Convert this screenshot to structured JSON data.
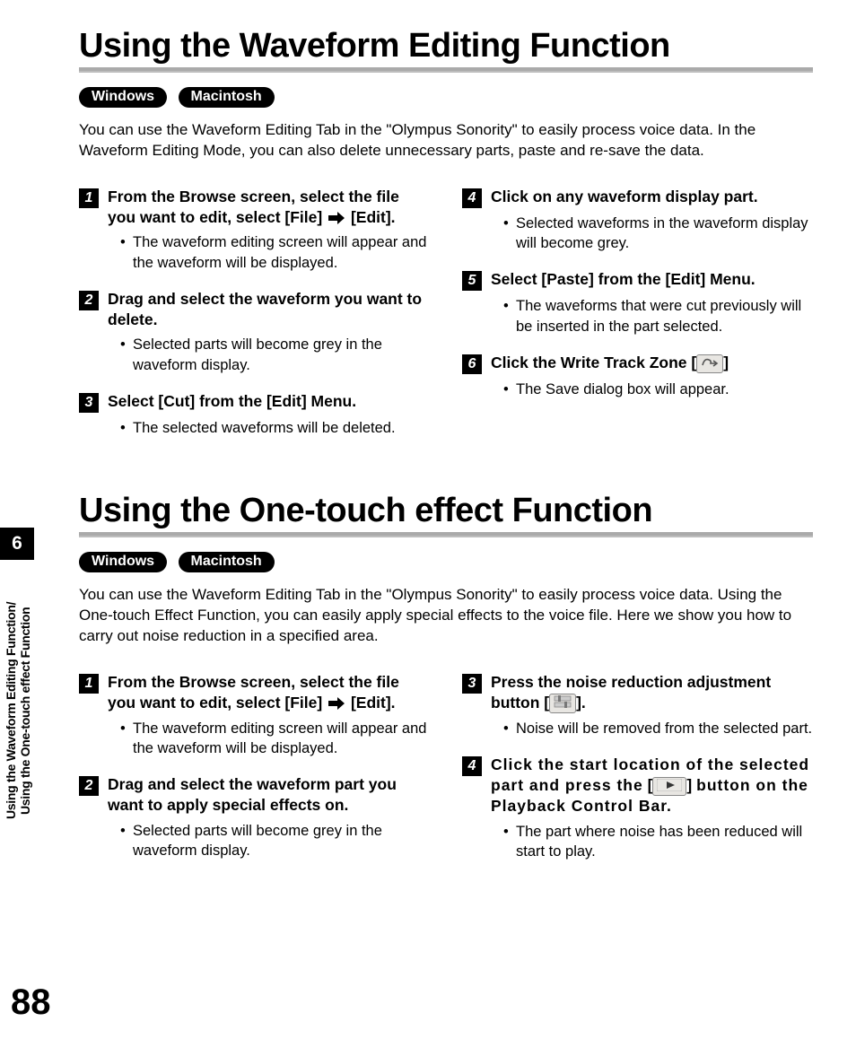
{
  "page": {
    "number": "88",
    "chapter": "6"
  },
  "sidebar": {
    "line1": "Using the Waveform Editing Function/",
    "line2": "Using the One-touch effect Function"
  },
  "platforms": [
    "Windows",
    "Macintosh"
  ],
  "section1": {
    "title": "Using the Waveform Editing Function",
    "intro": "You can use the Waveform Editing Tab in the \"Olympus Sonority\" to easily process voice data. In the Waveform Editing Mode, you can also delete unnecessary parts, paste and re-save the data.",
    "steps": [
      {
        "n": "1",
        "title_html": "From the Browse screen, select the file you want to edit, select [<b>File</b>] <svg class='arrow-icon' width='18' height='14' viewBox='0 0 18 14'><path d='M0 4 H10 V0 L18 7 L10 14 V10 H0 Z' fill='#000'/></svg> [<b>Edit</b>].",
        "bullets": [
          "The waveform editing screen will appear and the waveform will be displayed."
        ]
      },
      {
        "n": "2",
        "title_html": "Drag and select the waveform you want to delete.",
        "bullets": [
          "Selected parts will become grey in the waveform display."
        ]
      },
      {
        "n": "3",
        "title_html": "Select [<b>Cut</b>] from the [<b>Edit</b>] Menu.",
        "bullets": [
          "The selected waveforms will be deleted."
        ]
      },
      {
        "n": "4",
        "title_html": "Click on any waveform display part.",
        "bullets": [
          "Selected waveforms in the waveform display will become grey."
        ]
      },
      {
        "n": "5",
        "title_html": "Select [<b>Paste</b>] from the [<b>Edit</b>] Menu.",
        "bullets": [
          "The waveforms that were cut previously will be inserted in the part selected."
        ]
      },
      {
        "n": "6",
        "title_html": "Click the Write Track Zone [<span class='icon-box'><svg width='20' height='14' viewBox='0 0 20 14'><path d='M2 10 Q4 2 9 4 Q12 5 11 8 L17 8' stroke='#555' stroke-width='1.6' fill='none'/><path d='M14 5 L18 8 L14 11' stroke='#555' stroke-width='1.6' fill='none'/></svg></span>]",
        "bullets": [
          "The Save dialog box will appear."
        ]
      }
    ]
  },
  "section2": {
    "title": "Using the One-touch effect Function",
    "intro": "You can use the Waveform Editing Tab in the \"Olympus Sonority\" to easily process voice data. Using the One-touch Effect Function, you can easily apply special effects to the voice file. Here we show you how to carry out noise reduction in a specified area.",
    "steps": [
      {
        "n": "1",
        "title_html": "From the Browse screen, select the file you want to edit, select [<b>File</b>] <svg class='arrow-icon' width='18' height='14' viewBox='0 0 18 14'><path d='M0 4 H10 V0 L18 7 L10 14 V10 H0 Z' fill='#000'/></svg> [<b>Edit</b>].",
        "bullets": [
          "The waveform editing screen will appear and the waveform will be displayed."
        ]
      },
      {
        "n": "2",
        "title_html": "Drag and select the waveform part you want to apply special effects on.",
        "bullets": [
          "Selected parts will become grey in the waveform display."
        ]
      },
      {
        "n": "3",
        "title_html": "Press the noise reduction adjustment button [<span class='icon-box'><svg width='20' height='14' viewBox='0 0 20 14'><rect x='1' y='1' width='18' height='5' fill='#ccc' stroke='#888' stroke-width='0.8'/><rect x='1' y='8' width='18' height='5' fill='#ccc' stroke='#888' stroke-width='0.8'/><rect x='5' y='0' width='3' height='7' fill='#777'/><rect x='12' y='7' width='3' height='7' fill='#777'/></svg></span>].",
        "bullets": [
          "Noise will be removed from the selected part."
        ]
      },
      {
        "n": "4",
        "title_html": "<span class='tight'>Click the start location of the selected part and press the</span> [<span class='icon-box'><svg width='28' height='14' viewBox='0 0 28 14'><rect x='0' y='0' width='28' height='14' rx='2' fill='#eae8e4' stroke='#bbb'/><path d='M11 3 L20 7 L11 11 Z' fill='#333'/></svg></span>] <span class='tight'>button on the Playback Control Bar.</span>",
        "bullets": [
          "The part where noise has been reduced will start to play."
        ]
      }
    ]
  }
}
